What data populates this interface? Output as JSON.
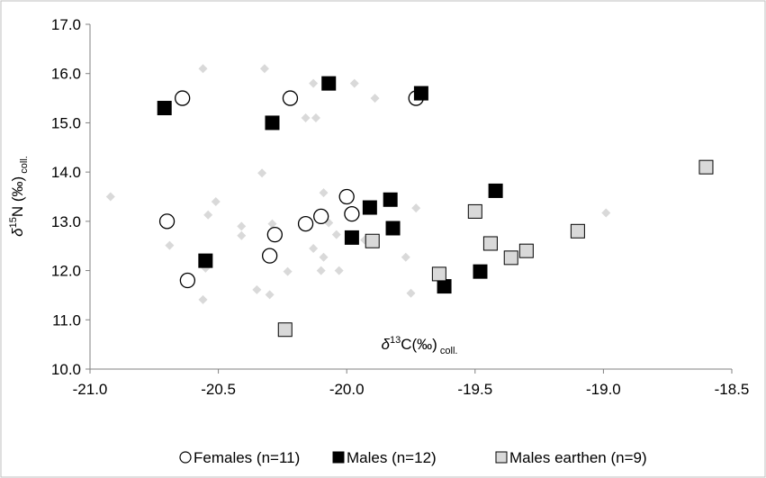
{
  "chart_data": {
    "type": "scatter",
    "xlabel": {
      "delta": "δ",
      "sup": "13",
      "main": "C(‰)",
      "sub": " coll."
    },
    "ylabel": {
      "delta": "δ",
      "sup": "15",
      "main": "N (‰)",
      "sub": " coll."
    },
    "xlim": [
      -21.0,
      -18.5
    ],
    "ylim": [
      10.0,
      17.0
    ],
    "xticks": [
      "-21.0",
      "-20.5",
      "-20.0",
      "-19.5",
      "-19.0",
      "-18.5"
    ],
    "yticks": [
      "10.0",
      "11.0",
      "12.0",
      "13.0",
      "14.0",
      "15.0",
      "16.0",
      "17.0"
    ],
    "grid": false,
    "legend_position": "bottom",
    "background_points": {
      "color": "#d9d9d9",
      "points": [
        [
          -20.56,
          16.1
        ],
        [
          -20.32,
          16.1
        ],
        [
          -20.13,
          15.8
        ],
        [
          -19.97,
          15.8
        ],
        [
          -19.89,
          15.5
        ],
        [
          -20.16,
          15.1
        ],
        [
          -20.12,
          15.1
        ],
        [
          -19.74,
          15.5
        ],
        [
          -20.33,
          13.98
        ],
        [
          -20.92,
          13.5
        ],
        [
          -20.51,
          13.4
        ],
        [
          -20.09,
          13.58
        ],
        [
          -19.73,
          13.27
        ],
        [
          -18.99,
          13.17
        ],
        [
          -20.54,
          13.13
        ],
        [
          -20.41,
          12.9
        ],
        [
          -20.29,
          12.95
        ],
        [
          -20.07,
          12.97
        ],
        [
          -19.93,
          12.62
        ],
        [
          -20.69,
          12.51
        ],
        [
          -20.41,
          12.71
        ],
        [
          -20.04,
          12.73
        ],
        [
          -20.13,
          12.45
        ],
        [
          -20.09,
          12.27
        ],
        [
          -19.77,
          12.27
        ],
        [
          -20.55,
          12.05
        ],
        [
          -20.23,
          11.98
        ],
        [
          -20.1,
          12.0
        ],
        [
          -20.03,
          12.0
        ],
        [
          -20.35,
          11.61
        ],
        [
          -20.3,
          11.51
        ],
        [
          -20.56,
          11.41
        ],
        [
          -19.75,
          11.54
        ]
      ]
    },
    "series": [
      {
        "name": "Females (n=11)",
        "marker": "circle",
        "fill": "#ffffff",
        "points": [
          [
            -20.64,
            15.5
          ],
          [
            -20.22,
            15.5
          ],
          [
            -19.73,
            15.5
          ],
          [
            -20.7,
            13.0
          ],
          [
            -20.62,
            11.8
          ],
          [
            -20.3,
            12.3
          ],
          [
            -20.28,
            12.73
          ],
          [
            -20.16,
            12.95
          ],
          [
            -20.1,
            13.1
          ],
          [
            -19.98,
            13.15
          ],
          [
            -20.0,
            13.5
          ]
        ]
      },
      {
        "name": "Males (n=12)",
        "marker": "square",
        "fill": "#000000",
        "points": [
          [
            -20.71,
            15.3
          ],
          [
            -20.29,
            15.0
          ],
          [
            -20.07,
            15.8
          ],
          [
            -19.71,
            15.6
          ],
          [
            -20.55,
            12.2
          ],
          [
            -19.98,
            12.67
          ],
          [
            -19.91,
            13.28
          ],
          [
            -19.82,
            12.86
          ],
          [
            -19.83,
            13.44
          ],
          [
            -19.42,
            13.62
          ],
          [
            -19.48,
            11.98
          ],
          [
            -19.62,
            11.68
          ]
        ]
      },
      {
        "name": "Males earthen (n=9)",
        "marker": "square",
        "fill": "#d9d9d9",
        "points": [
          [
            -20.24,
            10.8
          ],
          [
            -19.9,
            12.6
          ],
          [
            -19.64,
            11.93
          ],
          [
            -19.5,
            13.2
          ],
          [
            -19.44,
            12.55
          ],
          [
            -19.36,
            12.26
          ],
          [
            -19.3,
            12.4
          ],
          [
            -19.1,
            12.8
          ],
          [
            -18.6,
            14.1
          ]
        ]
      }
    ]
  }
}
